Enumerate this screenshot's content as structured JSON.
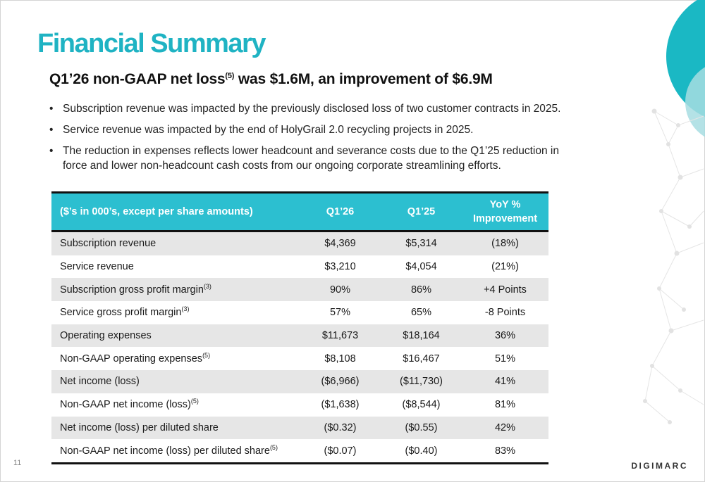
{
  "slide": {
    "title": "Financial Summary",
    "subtitle_pre": "Q1’26 non-GAAP net loss",
    "subtitle_sup": "(5)",
    "subtitle_post": " was $1.6M, an improvement of $6.9M",
    "page_number": "11",
    "logo_text": "DIGIMARC"
  },
  "bullets": [
    "Subscription revenue was impacted by the previously disclosed loss of two customer contracts in 2025.",
    "Service revenue was impacted by the end of HolyGrail 2.0 recycling projects in 2025.",
    "The reduction in expenses reflects lower headcount and severance costs due to the Q1’25 reduction in force and lower non-headcount cash costs from our ongoing corporate streamlining efforts."
  ],
  "bullet_symbol": "•",
  "table": {
    "headers": [
      "($’s in 000’s, except per share amounts)",
      "Q1’26",
      "Q1’25",
      "YoY %",
      "Improvement"
    ],
    "rows": [
      {
        "label": "Subscription revenue",
        "sup": "",
        "q126": "$4,369",
        "q125": "$5,314",
        "yoy": "(18%)"
      },
      {
        "label": "Service revenue",
        "sup": "",
        "q126": "$3,210",
        "q125": "$4,054",
        "yoy": "(21%)"
      },
      {
        "label": "Subscription gross profit margin",
        "sup": "(3)",
        "q126": "90%",
        "q125": "86%",
        "yoy": "+4 Points"
      },
      {
        "label": "Service gross profit margin",
        "sup": "(3)",
        "q126": "57%",
        "q125": "65%",
        "yoy": "-8 Points"
      },
      {
        "label": "Operating expenses",
        "sup": "",
        "q126": "$11,673",
        "q125": "$18,164",
        "yoy": "36%"
      },
      {
        "label": "Non-GAAP operating expenses",
        "sup": "(5)",
        "q126": "$8,108",
        "q125": "$16,467",
        "yoy": "51%"
      },
      {
        "label": "Net income (loss)",
        "sup": "",
        "q126": "($6,966)",
        "q125": "($11,730)",
        "yoy": "41%"
      },
      {
        "label": "Non-GAAP net income (loss)",
        "sup": "(5)",
        "q126": "($1,638)",
        "q125": "($8,544)",
        "yoy": "81%"
      },
      {
        "label": "Net income (loss) per diluted share",
        "sup": "",
        "q126": "($0.32)",
        "q125": "($0.55)",
        "yoy": "42%"
      },
      {
        "label": "Non-GAAP net income (loss) per diluted share",
        "sup": "(5)",
        "q126": "($0.07)",
        "q125": "($0.40)",
        "yoy": "83%"
      }
    ]
  },
  "colors": {
    "accent": "#1fb3c3",
    "header_bg": "#2cbfd0",
    "row_shade": "#e6e6e6",
    "circle_large": "#1ab8c4",
    "circle_small": "#a7dde2"
  }
}
